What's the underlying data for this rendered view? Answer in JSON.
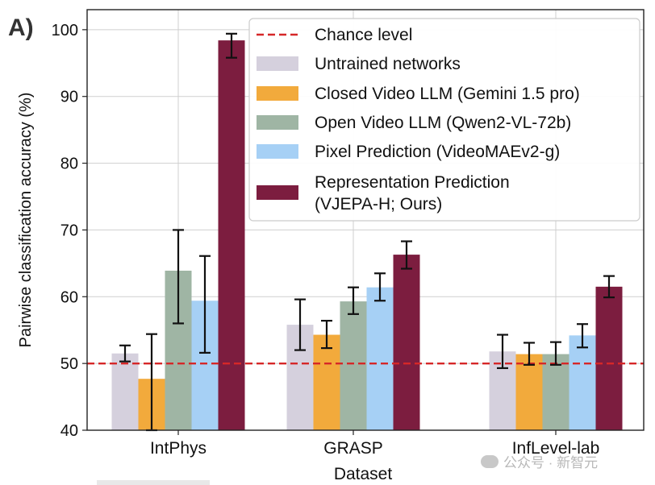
{
  "panel_label": "A)",
  "watermark": "公众号 · 新智元",
  "chart_data": {
    "type": "bar",
    "categories": [
      "IntPhys",
      "GRASP",
      "InfLevel-lab"
    ],
    "xlabel": "Dataset",
    "ylabel": "Pairwise classification accuracy (%)",
    "ylim": [
      40,
      103
    ],
    "yticks": [
      40,
      50,
      60,
      70,
      80,
      90,
      100
    ],
    "grid": true,
    "legend_position": "top-right",
    "chance_level": {
      "name": "Chance level",
      "value": 50,
      "color": "#d62728"
    },
    "series": [
      {
        "name": "Untrained networks",
        "color": "#d5d0dd",
        "values": [
          51.5,
          55.8,
          51.8
        ],
        "err_low": [
          50.3,
          52.0,
          49.3
        ],
        "err_high": [
          52.7,
          59.6,
          54.3
        ]
      },
      {
        "name": "Closed Video LLM (Gemini 1.5 pro)",
        "color": "#f2aa3c",
        "values": [
          47.7,
          54.3,
          51.4
        ],
        "err_low": [
          40.0,
          52.3,
          49.8
        ],
        "err_high": [
          54.4,
          56.4,
          53.1
        ]
      },
      {
        "name": "Open Video LLM (Qwen2-VL-72b)",
        "color": "#9fb5a4",
        "values": [
          63.9,
          59.3,
          51.4
        ],
        "err_low": [
          56.0,
          57.4,
          49.8
        ],
        "err_high": [
          70.0,
          61.4,
          53.2
        ]
      },
      {
        "name": "Pixel Prediction (VideoMAEv2-g)",
        "color": "#a6d0f5",
        "values": [
          59.4,
          61.4,
          54.2
        ],
        "err_low": [
          51.6,
          59.4,
          52.4
        ],
        "err_high": [
          66.1,
          63.5,
          55.9
        ]
      },
      {
        "name": "Representation Prediction (VJEPA-H; Ours)",
        "label_lines": [
          "Representation Prediction",
          "(VJEPA-H; Ours)"
        ],
        "color": "#7c1d3f",
        "values": [
          98.4,
          66.3,
          61.5
        ],
        "err_low": [
          95.8,
          64.2,
          59.9
        ],
        "err_high": [
          99.4,
          68.3,
          63.1
        ]
      }
    ]
  }
}
